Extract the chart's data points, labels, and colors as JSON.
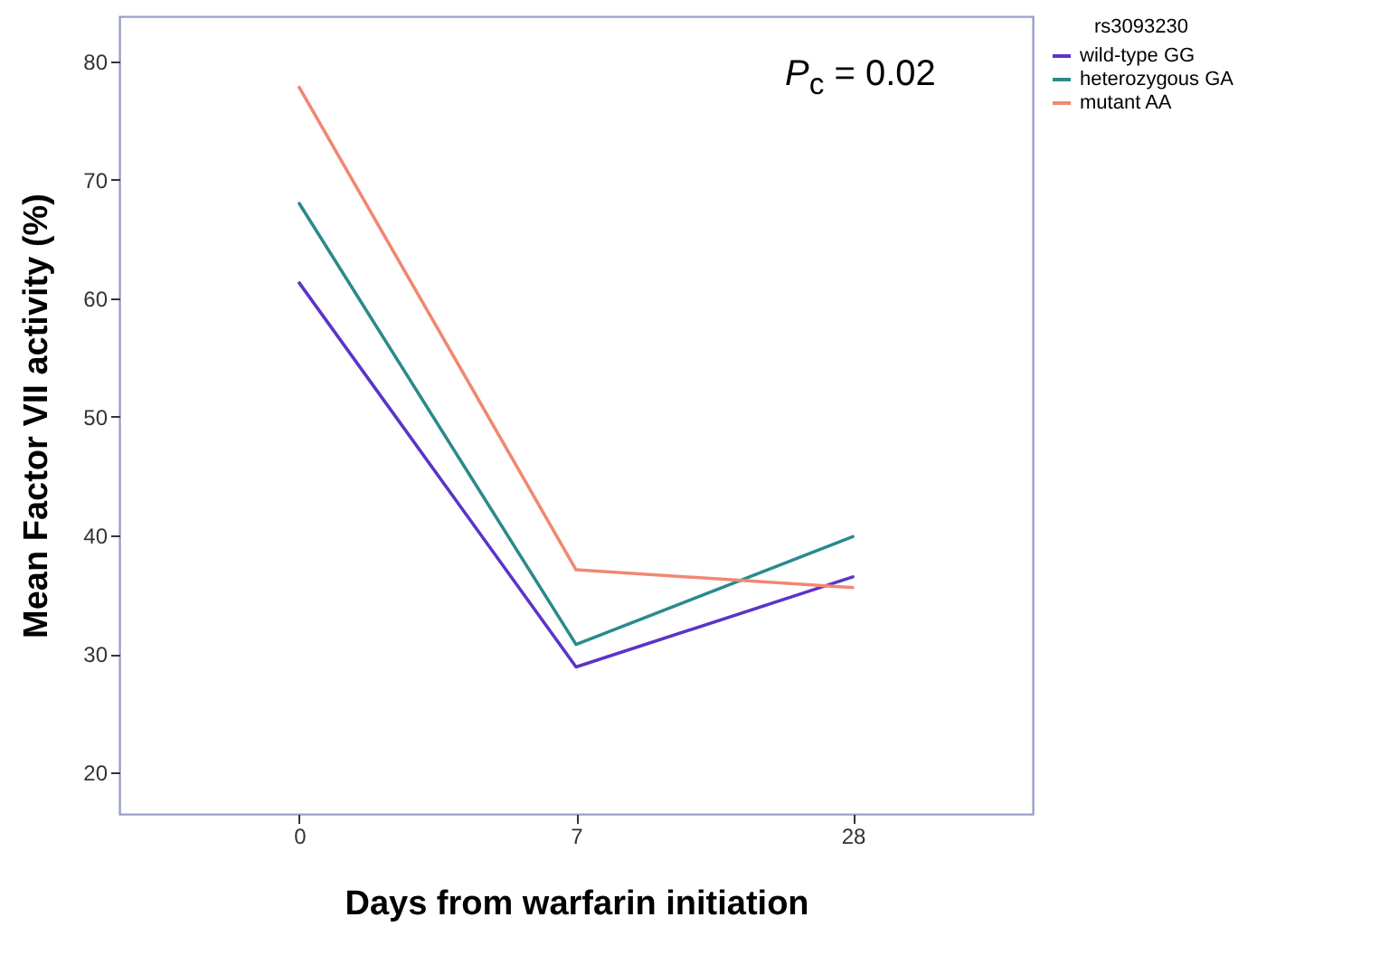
{
  "chart_data": {
    "type": "line",
    "xlabel": "Days from warfarin initiation",
    "ylabel": "Mean Factor VII activity (%)",
    "legend_title": "rs3093230",
    "categories": [
      "0",
      "7",
      "28"
    ],
    "series": [
      {
        "name": "wild-type GG",
        "color": "#5b34c8",
        "values": [
          61.3,
          28.9,
          36.5
        ]
      },
      {
        "name": "heterozygous GA",
        "color": "#2a8a8c",
        "values": [
          68,
          30.8,
          39.9
        ]
      },
      {
        "name": "mutant AA",
        "color": "#f08872",
        "values": [
          77.8,
          37.1,
          35.6
        ]
      }
    ],
    "ylim": [
      16.5,
      83.8
    ],
    "yticks": [
      20,
      30,
      40,
      50,
      60,
      70,
      80
    ],
    "grid": false,
    "legend": "top right",
    "marker": "none",
    "line_style": "solid",
    "annotations": [
      "P$_{c}$ = 0.02"
    ]
  }
}
